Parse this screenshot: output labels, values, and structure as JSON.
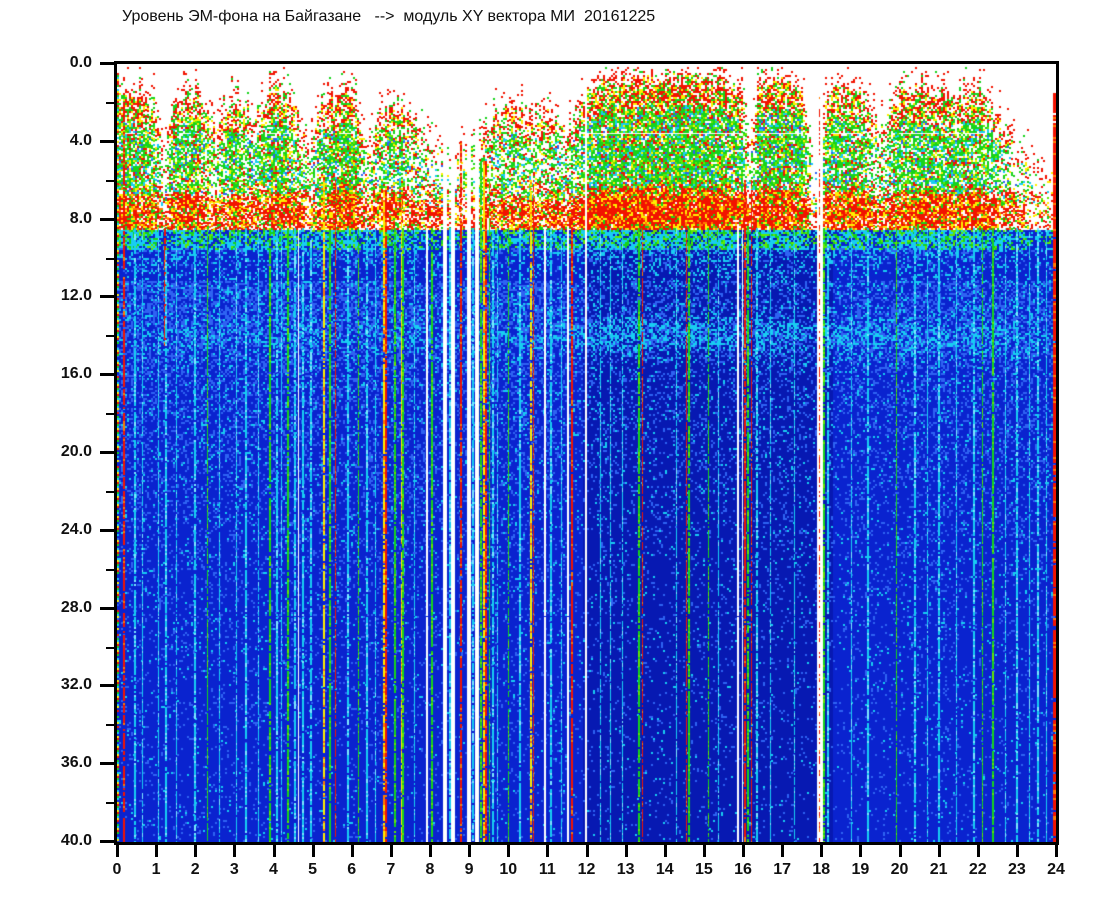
{
  "chart": {
    "title": "Уровень ЭМ-фона на Байгазане   -->  модуль XY вектора МИ  20161225"
  },
  "chart_data": {
    "type": "heatmap",
    "title": "Уровень ЭМ-фона на Байгазане   -->  модуль XY вектора МИ  20161225",
    "date_label": "20161225",
    "xlabel": "",
    "ylabel": "",
    "x_range": [
      0,
      24
    ],
    "y_range": [
      0,
      40
    ],
    "y_inverted": true,
    "grid": false,
    "legend": "none",
    "x_tick_labels": [
      "0",
      "1",
      "2",
      "3",
      "4",
      "5",
      "6",
      "7",
      "8",
      "9",
      "10",
      "11",
      "12",
      "13",
      "14",
      "15",
      "16",
      "17",
      "18",
      "19",
      "20",
      "21",
      "22",
      "23",
      "24"
    ],
    "y_tick_labels": [
      "0.0",
      "4.0",
      "8.0",
      "12.0",
      "16.0",
      "20.0",
      "24.0",
      "28.0",
      "32.0",
      "36.0",
      "40.0"
    ],
    "y_tick_values": [
      0,
      4,
      8,
      12,
      16,
      20,
      24,
      28,
      32,
      36,
      40
    ],
    "y_minor_tick_step": 2,
    "palette": {
      "red": "#f21300",
      "orange": "#ff7a00",
      "yellow": "#ffee00",
      "green": "#17d31b",
      "green2": "#63e800",
      "cyan": "#18cdf2",
      "cyan2": "#7ce9ff",
      "lightblue": "#2e63f2",
      "blue": "#0a23cf",
      "deepblue": "#0719b2",
      "white": "#ffffff",
      "text": "#101010",
      "frame": "#000000"
    },
    "render": {
      "seed": 20161225,
      "sample_hours": [
        0,
        0.5,
        1.0,
        1.2,
        1.4,
        1.5,
        2.0,
        2.5,
        3.0,
        3.5,
        4.0,
        4.5,
        4.9,
        5.2,
        5.5,
        6.0,
        6.4,
        6.9,
        7.0,
        7.5,
        8.0,
        8.5,
        9.0,
        9.5,
        10.0,
        10.5,
        11.0,
        11.5,
        12.0,
        12.5,
        13.0,
        13.5,
        14.0,
        14.5,
        15.0,
        15.5,
        16.0,
        16.2,
        16.4,
        17.0,
        17.5,
        17.85,
        18.1,
        18.5,
        19.0,
        19.5,
        20.0,
        20.5,
        21.0,
        21.5,
        22.0,
        22.5,
        23.0,
        23.5,
        24.0
      ],
      "act_top": [
        1.8,
        1.5,
        2.2,
        5.0,
        2.4,
        2.0,
        1.6,
        3.2,
        1.9,
        2.8,
        1.3,
        1.9,
        4.6,
        2.4,
        1.8,
        1.5,
        4.2,
        2.4,
        2.2,
        2.8,
        4.2,
        4.6,
        4.2,
        3.0,
        2.2,
        2.8,
        2.5,
        3.4,
        1.6,
        0.8,
        1.0,
        0.7,
        0.8,
        0.7,
        0.8,
        1.0,
        1.5,
        3.8,
        1.3,
        0.9,
        1.2,
        5.2,
        2.0,
        1.2,
        1.6,
        3.4,
        1.8,
        1.2,
        1.5,
        1.8,
        1.3,
        2.6,
        4.2,
        5.2,
        5.6
      ],
      "act_density": [
        0.85,
        0.95,
        0.7,
        0.3,
        0.75,
        0.8,
        0.9,
        0.5,
        0.85,
        0.55,
        0.9,
        0.75,
        0.35,
        0.7,
        0.85,
        0.9,
        0.4,
        0.7,
        0.75,
        0.55,
        0.4,
        0.3,
        0.35,
        0.55,
        0.7,
        0.6,
        0.65,
        0.5,
        0.85,
        0.95,
        0.95,
        0.97,
        0.97,
        0.97,
        0.95,
        0.9,
        0.8,
        0.3,
        0.9,
        0.95,
        0.9,
        0.1,
        0.75,
        0.9,
        0.8,
        0.45,
        0.85,
        0.9,
        0.85,
        0.8,
        0.85,
        0.6,
        0.35,
        0.2,
        0.15
      ],
      "red_band": [
        0.5,
        0.5,
        0.4,
        0.3,
        0.4,
        0.4,
        0.5,
        0.4,
        0.5,
        0.5,
        0.5,
        0.6,
        0.4,
        0.5,
        0.5,
        0.5,
        0.45,
        0.5,
        0.5,
        0.5,
        0.55,
        0.45,
        0.45,
        0.5,
        0.5,
        0.5,
        0.5,
        0.55,
        0.8,
        0.9,
        0.9,
        0.9,
        0.9,
        0.9,
        0.9,
        0.85,
        0.8,
        0.5,
        0.7,
        0.7,
        0.7,
        0.15,
        0.6,
        0.6,
        0.6,
        0.5,
        0.6,
        0.6,
        0.6,
        0.6,
        0.6,
        0.5,
        0.4,
        0.3,
        0.3
      ],
      "blue_noise": [
        0.55,
        0.55,
        0.5,
        0.5,
        0.5,
        0.5,
        0.55,
        0.5,
        0.55,
        0.5,
        0.55,
        0.55,
        0.5,
        0.5,
        0.55,
        0.55,
        0.5,
        0.5,
        0.5,
        0.5,
        0.45,
        0.45,
        0.45,
        0.5,
        0.5,
        0.5,
        0.5,
        0.45,
        0.35,
        0.3,
        0.3,
        0.3,
        0.3,
        0.3,
        0.3,
        0.3,
        0.3,
        0.3,
        0.3,
        0.3,
        0.3,
        0.25,
        0.3,
        0.35,
        0.4,
        0.4,
        0.45,
        0.45,
        0.45,
        0.45,
        0.45,
        0.45,
        0.45,
        0.4,
        0.4
      ],
      "scatter_band": [
        0.1,
        0.15,
        0.2,
        0.2,
        0.2,
        0.2,
        0.25,
        0.25,
        0.25,
        0.25,
        0.25,
        0.25,
        0.25,
        0.25,
        0.25,
        0.25,
        0.25,
        0.25,
        0.25,
        0.25,
        0.25,
        0.25,
        0.25,
        0.25,
        0.3,
        0.3,
        0.3,
        0.35,
        0.55,
        0.6,
        0.6,
        0.6,
        0.6,
        0.6,
        0.6,
        0.6,
        0.6,
        0.55,
        0.55,
        0.55,
        0.55,
        0.2,
        0.55,
        0.55,
        0.5,
        0.45,
        0.5,
        0.5,
        0.5,
        0.5,
        0.5,
        0.5,
        0.45,
        0.35,
        0.1
      ],
      "gaps": [
        [
          8.34,
          8.42
        ],
        [
          8.55,
          8.64
        ],
        [
          8.97,
          9.05
        ],
        [
          9.17,
          9.25
        ],
        [
          11.96,
          12.03
        ],
        [
          17.87,
          18.02
        ]
      ],
      "streaks": [
        [
          0.03,
          "multi",
          2,
          0.5,
          40,
          0.8
        ],
        [
          0.17,
          "red",
          2,
          2.0
        ],
        [
          0.45,
          "cyan",
          2
        ],
        [
          0.65,
          "cyan",
          1
        ],
        [
          1.05,
          "cyan",
          1
        ],
        [
          1.22,
          "red",
          2,
          8.45,
          14.5,
          0.8
        ],
        [
          1.25,
          "cyan",
          2,
          9.5
        ],
        [
          1.5,
          "cyan",
          1
        ],
        [
          2.0,
          "cyan",
          2
        ],
        [
          2.3,
          "green",
          1
        ],
        [
          2.6,
          "cyan",
          1
        ],
        [
          3.05,
          "cyan",
          1
        ],
        [
          3.3,
          "cyan",
          2
        ],
        [
          3.6,
          "cyan",
          1
        ],
        [
          3.9,
          "green",
          2
        ],
        [
          4.1,
          "cyan",
          2
        ],
        [
          4.2,
          "cyan",
          1
        ],
        [
          4.38,
          "green",
          2
        ],
        [
          4.55,
          "cyan",
          2
        ],
        [
          4.62,
          "white",
          1,
          8.45,
          40,
          1
        ],
        [
          4.75,
          "cyan",
          2
        ],
        [
          4.95,
          "cyan",
          2
        ],
        [
          5.3,
          "yellow",
          2,
          6.0
        ],
        [
          5.45,
          "green",
          2
        ],
        [
          5.57,
          "red",
          1,
          6.0
        ],
        [
          5.9,
          "cyan",
          2
        ],
        [
          6.15,
          "green",
          1
        ],
        [
          6.4,
          "cyan",
          2
        ],
        [
          6.6,
          "cyan",
          1
        ],
        [
          6.82,
          "yellow",
          2,
          6.5
        ],
        [
          6.88,
          "red",
          2,
          6.5
        ],
        [
          7.1,
          "green",
          2
        ],
        [
          7.26,
          "yellow",
          1,
          7.0
        ],
        [
          7.3,
          "green",
          2
        ],
        [
          7.6,
          "cyan",
          1
        ],
        [
          7.92,
          "white",
          2,
          8.45,
          40,
          1
        ],
        [
          8.05,
          "green",
          2
        ],
        [
          8.5,
          "cyan",
          2
        ],
        [
          8.8,
          "red",
          2,
          4.0
        ],
        [
          9.1,
          "cyan",
          2
        ],
        [
          9.3,
          "green",
          2,
          5.0
        ],
        [
          9.38,
          "yellow",
          2,
          5.0
        ],
        [
          9.44,
          "red",
          2,
          5.0
        ],
        [
          9.52,
          "green",
          1,
          6.0
        ],
        [
          9.62,
          "cyan",
          2
        ],
        [
          9.72,
          "cyan",
          1
        ],
        [
          10.0,
          "green",
          1
        ],
        [
          10.3,
          "cyan",
          2
        ],
        [
          10.57,
          "yellow",
          2,
          6.0
        ],
        [
          10.62,
          "red",
          1,
          6.0
        ],
        [
          10.93,
          "white",
          2,
          8.45,
          40,
          1
        ],
        [
          11.1,
          "cyan",
          2
        ],
        [
          11.35,
          "cyan",
          1
        ],
        [
          11.52,
          "white",
          2,
          8.45,
          40,
          1
        ],
        [
          11.64,
          "red",
          2,
          7.5,
          40,
          0.95
        ],
        [
          12.35,
          "cyan",
          1
        ],
        [
          12.6,
          "cyan",
          1
        ],
        [
          12.9,
          "cyan",
          1
        ],
        [
          13.35,
          "green",
          2
        ],
        [
          13.43,
          "red",
          1
        ],
        [
          14.3,
          "cyan",
          1
        ],
        [
          14.55,
          "red",
          1
        ],
        [
          14.62,
          "green",
          2
        ],
        [
          15.1,
          "green",
          1
        ],
        [
          15.35,
          "cyan",
          1
        ],
        [
          15.88,
          "white",
          2,
          8.45,
          40,
          1
        ],
        [
          15.98,
          "white",
          1,
          8.45,
          40,
          1
        ],
        [
          16.05,
          "red",
          2,
          6.0
        ],
        [
          16.12,
          "green",
          2
        ],
        [
          16.2,
          "red",
          1,
          6.0
        ],
        [
          16.35,
          "cyan",
          2
        ],
        [
          16.7,
          "cyan",
          1
        ],
        [
          17.3,
          "cyan",
          1
        ],
        [
          17.95,
          "red",
          1,
          1.5,
          40,
          0.5
        ],
        [
          18.07,
          "green",
          2
        ],
        [
          18.16,
          "cyan",
          2
        ],
        [
          18.75,
          "cyan",
          1
        ],
        [
          19.2,
          "cyan",
          2
        ],
        [
          19.9,
          "green",
          1
        ],
        [
          20.4,
          "cyan",
          2
        ],
        [
          20.7,
          "cyan",
          1
        ],
        [
          21.0,
          "cyan",
          2
        ],
        [
          21.45,
          "cyan",
          1
        ],
        [
          21.9,
          "cyan",
          2
        ],
        [
          22.1,
          "green",
          1
        ],
        [
          22.4,
          "green",
          2
        ],
        [
          22.7,
          "cyan",
          1
        ],
        [
          23.0,
          "cyan",
          2
        ],
        [
          23.3,
          "cyan",
          1
        ],
        [
          23.55,
          "cyan",
          2
        ],
        [
          23.75,
          "cyan",
          1
        ],
        [
          23.97,
          "red",
          3,
          1.5,
          40,
          0.95
        ]
      ]
    }
  }
}
